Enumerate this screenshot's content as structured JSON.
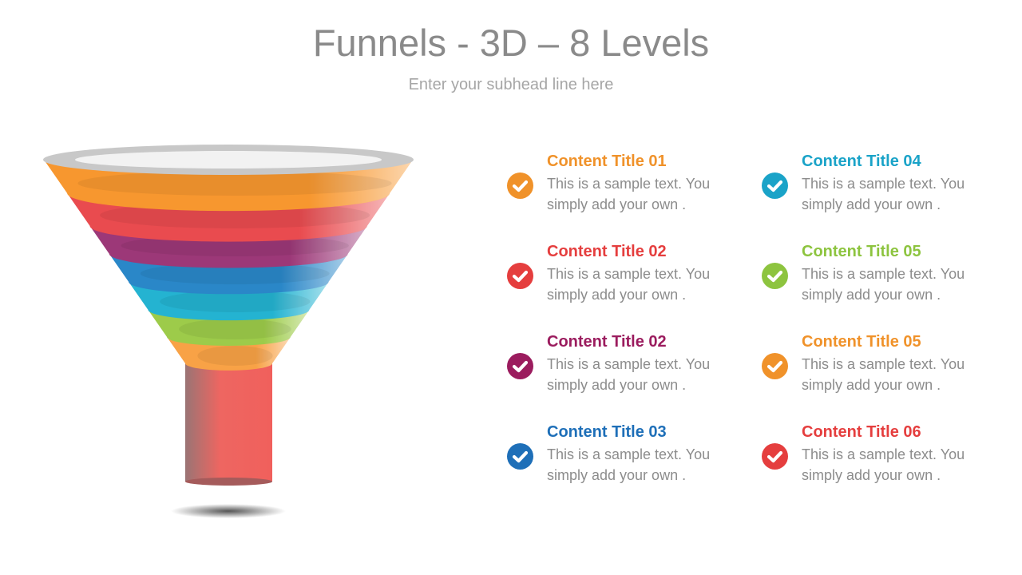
{
  "header": {
    "title": "Funnels - 3D – 8 Levels",
    "subtitle": "Enter your subhead line here"
  },
  "funnel": {
    "rim_color": "#c8c8c8",
    "opening_color": "#f2f2f2",
    "levels": [
      "#f7972f",
      "#e94b4f",
      "#9c3878",
      "#2a87c8",
      "#24b3d1",
      "#9dcb4a",
      "#f8a246"
    ],
    "stem_color": "#ef605c"
  },
  "items": [
    {
      "title": "Content Title 01",
      "text": "This is a sample text. You simply add your own .",
      "color": "#f0922a",
      "icon": "check-circle-icon"
    },
    {
      "title": "Content Title 02",
      "text": "This is a sample text. You simply add your own .",
      "color": "#e53e3e",
      "icon": "check-circle-icon"
    },
    {
      "title": "Content Title 02",
      "text": "This is a sample text. You simply add your own .",
      "color": "#9b1c5e",
      "icon": "check-circle-icon"
    },
    {
      "title": "Content Title 03",
      "text": "This is a sample text. You simply add your own .",
      "color": "#1e6fb8",
      "icon": "check-circle-icon"
    },
    {
      "title": "Content Title 04",
      "text": "This is a sample text. You simply add your own .",
      "color": "#1aa3c8",
      "icon": "check-circle-icon"
    },
    {
      "title": "Content Title 05",
      "text": "This is a sample text. You simply add your own .",
      "color": "#8dc43f",
      "icon": "check-circle-icon"
    },
    {
      "title": "Content Title 05",
      "text": "This is a sample text. You simply add your own .",
      "color": "#f0922a",
      "icon": "check-circle-icon"
    },
    {
      "title": "Content Title 06",
      "text": "This is a sample text. You simply add your own .",
      "color": "#e53e3e",
      "icon": "check-circle-icon"
    }
  ]
}
